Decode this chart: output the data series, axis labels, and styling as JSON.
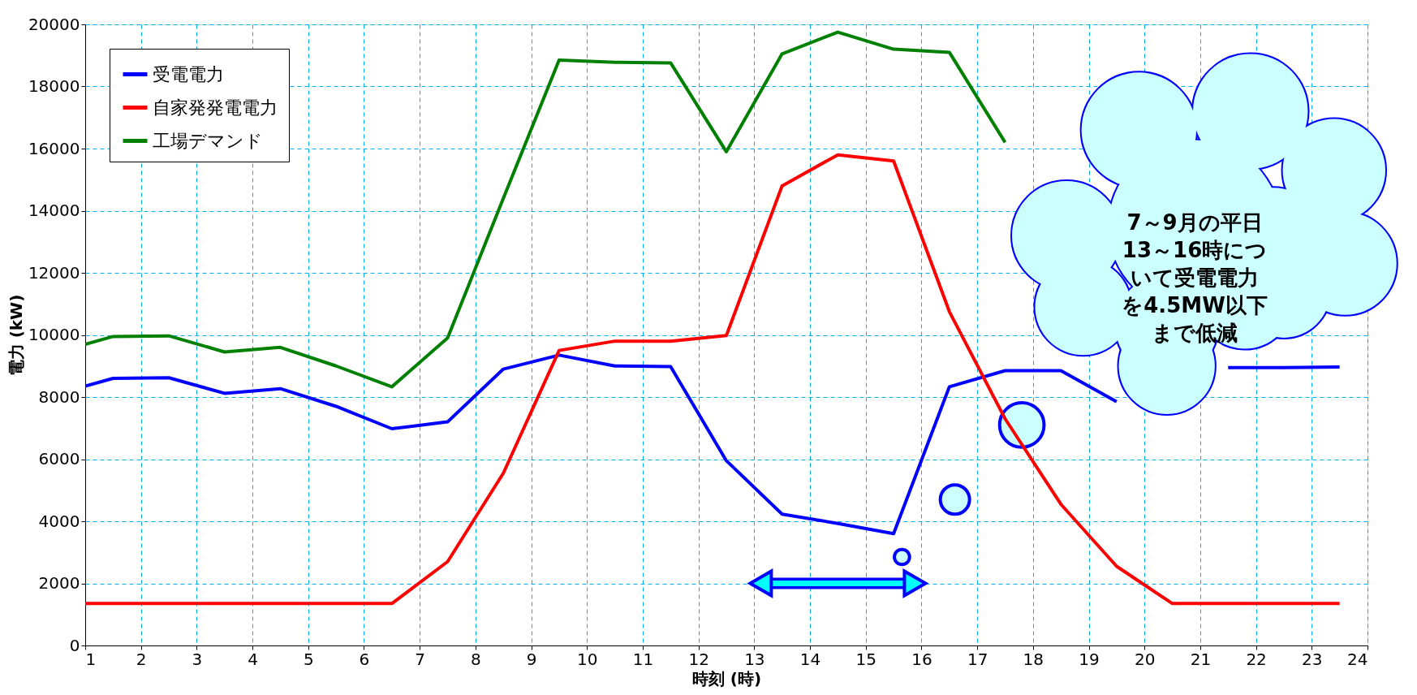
{
  "chart_data": {
    "type": "line",
    "xlabel": "時刻 (時)",
    "ylabel": "電力 (kW)",
    "x": [
      1,
      1.5,
      2.5,
      3.5,
      4.5,
      5.5,
      6.5,
      7.5,
      8.5,
      9.5,
      10.5,
      11.5,
      12.5,
      13.5,
      14.5,
      15.5,
      16.5,
      17.5,
      18.5,
      19.5,
      20.5,
      21.5,
      22.5,
      23.5
    ],
    "series": [
      {
        "name": "受電電力",
        "color": "#0000ff",
        "values": [
          8350,
          8600,
          8620,
          8120,
          8270,
          7700,
          6980,
          7200,
          8900,
          9350,
          9000,
          8980,
          5950,
          4230,
          3930,
          3600,
          8330,
          8850,
          8850,
          7850,
          null,
          8950,
          8950,
          8970
        ]
      },
      {
        "name": "自家発発電電力",
        "color": "#ff0000",
        "values": [
          1350,
          1350,
          1350,
          1350,
          1350,
          1350,
          1350,
          2700,
          5550,
          9500,
          9800,
          9800,
          9980,
          14800,
          15800,
          15600,
          10750,
          7300,
          4550,
          2550,
          1350,
          1350,
          1350,
          1350
        ]
      },
      {
        "name": "工場デマンド",
        "color": "#008000",
        "values": [
          9700,
          9950,
          9970,
          9450,
          9600,
          9000,
          8330,
          9900,
          14400,
          18850,
          18780,
          18760,
          15900,
          19050,
          19750,
          19200,
          19100,
          16200,
          null,
          null,
          null,
          null,
          null,
          null
        ]
      }
    ],
    "xlim": [
      1,
      24
    ],
    "xticks": [
      1,
      2,
      3,
      4,
      5,
      6,
      7,
      8,
      9,
      10,
      11,
      12,
      13,
      14,
      15,
      16,
      17,
      18,
      19,
      20,
      21,
      22,
      23,
      24
    ],
    "ylim": [
      0,
      20000
    ],
    "yticks": [
      0,
      2000,
      4000,
      6000,
      8000,
      10000,
      12000,
      14000,
      16000,
      18000,
      20000
    ],
    "grid": true,
    "legend": "top left",
    "marker": "none",
    "line_style": "solid",
    "annotations": [
      "7～9月の平日13～16時について受電電力を4.5MW以下まで低減"
    ]
  }
}
